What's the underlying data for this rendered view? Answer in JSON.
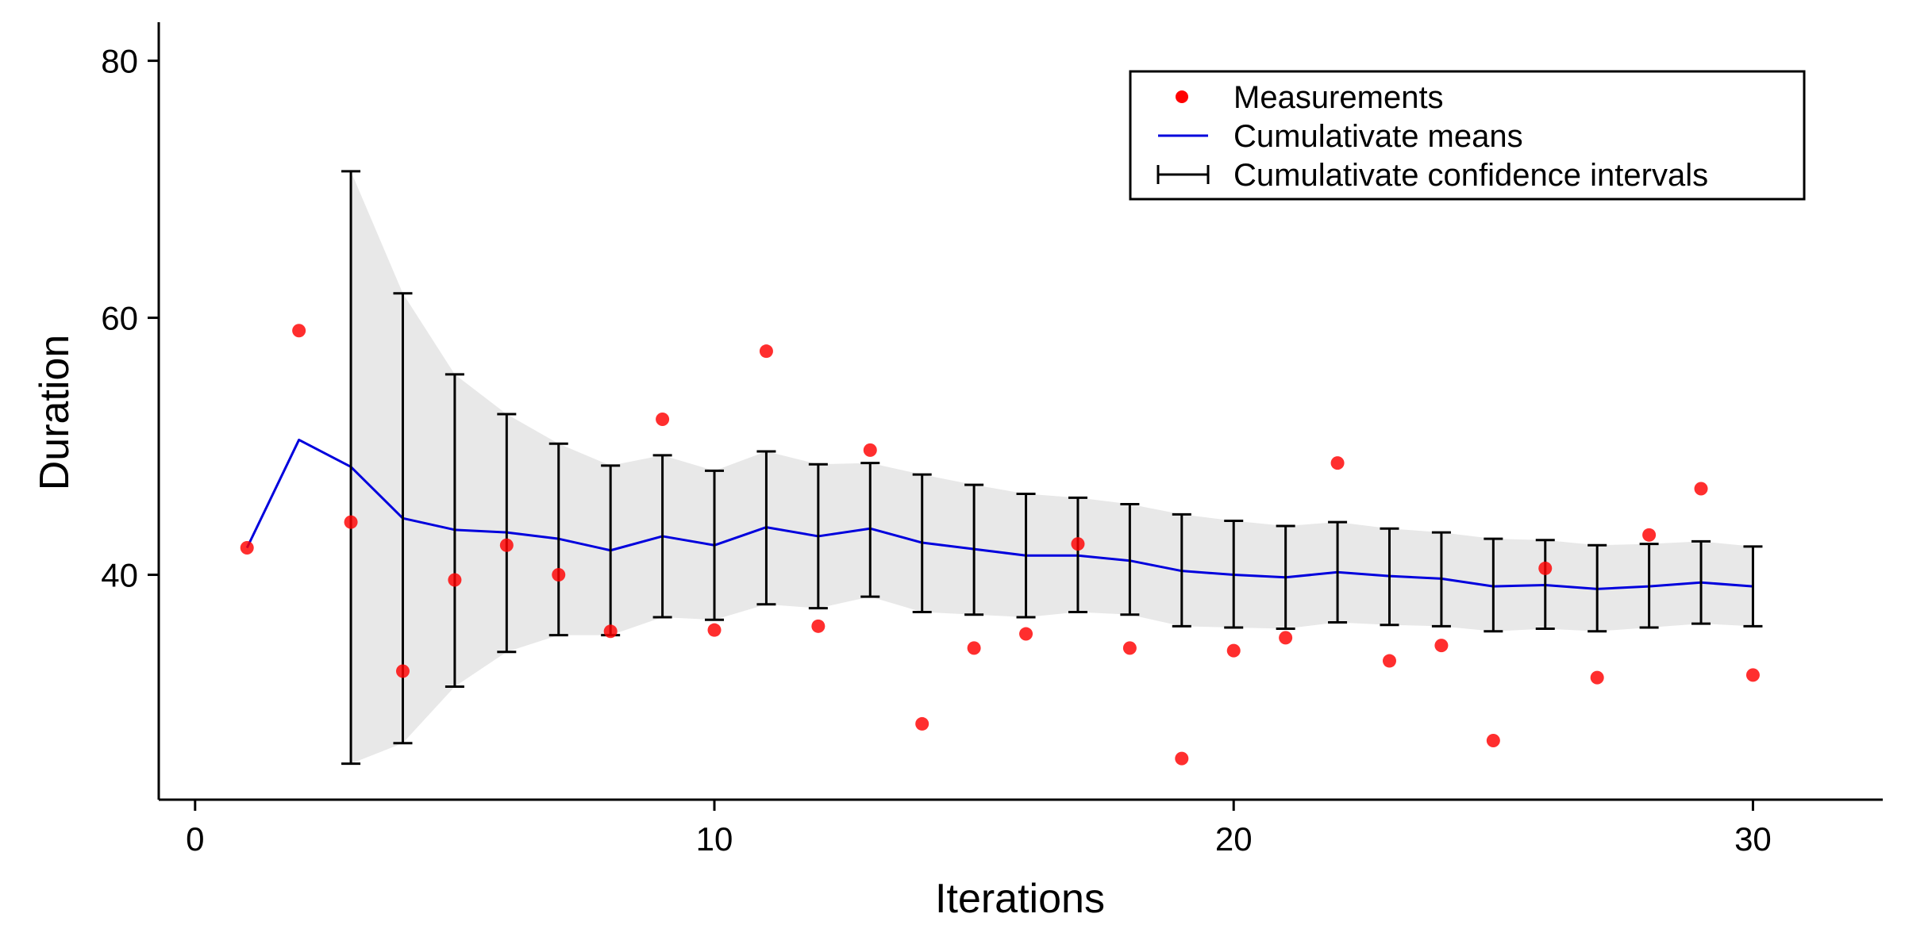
{
  "chart_data": {
    "type": "scatter",
    "title": "",
    "xlabel": "Iterations",
    "ylabel": "Duration",
    "xlim": [
      -0.7,
      32.5
    ],
    "ylim": [
      22.5,
      83
    ],
    "x_ticks": [
      0,
      10,
      20,
      30
    ],
    "y_ticks": [
      40,
      60,
      80
    ],
    "grid": false,
    "legend_position": "top-right",
    "colors": {
      "measurements": "#ff0000",
      "cumulative_mean": "#0000dd",
      "confidence_interval": "#000000",
      "ci_band": "#e8e8e8"
    },
    "legend": [
      {
        "label": "Measurements",
        "kind": "point"
      },
      {
        "label": "Cumulativate means",
        "kind": "line"
      },
      {
        "label": "Cumulativate confidence intervals",
        "kind": "errorbar"
      }
    ],
    "measurements": {
      "x": [
        1,
        2,
        3,
        4,
        5,
        6,
        7,
        8,
        9,
        10,
        11,
        12,
        13,
        14,
        15,
        16,
        17,
        18,
        19,
        20,
        21,
        22,
        23,
        24,
        25,
        26,
        27,
        28,
        29,
        30
      ],
      "y": [
        42.1,
        59.0,
        44.1,
        32.5,
        39.6,
        42.3,
        40.0,
        35.6,
        52.1,
        35.7,
        57.4,
        36.0,
        49.7,
        28.4,
        34.3,
        35.4,
        42.4,
        34.3,
        25.7,
        34.1,
        35.1,
        48.7,
        33.3,
        34.5,
        27.1,
        40.5,
        32.0,
        43.1,
        46.7,
        32.2
      ]
    },
    "cumulative_means": {
      "x": [
        1,
        2,
        3,
        4,
        5,
        6,
        7,
        8,
        9,
        10,
        11,
        12,
        13,
        14,
        15,
        16,
        17,
        18,
        19,
        20,
        21,
        22,
        23,
        24,
        25,
        26,
        27,
        28,
        29,
        30
      ],
      "y": [
        42.1,
        50.5,
        48.4,
        44.4,
        43.5,
        43.3,
        42.8,
        41.9,
        43.0,
        42.3,
        43.7,
        43.0,
        43.6,
        42.5,
        42.0,
        41.5,
        41.5,
        41.1,
        40.3,
        40.0,
        39.8,
        40.2,
        39.9,
        39.7,
        39.1,
        39.2,
        38.9,
        39.1,
        39.4,
        39.1
      ]
    },
    "confidence_intervals": {
      "x": [
        3,
        4,
        5,
        6,
        7,
        8,
        9,
        10,
        11,
        12,
        13,
        14,
        15,
        16,
        17,
        18,
        19,
        20,
        21,
        22,
        23,
        24,
        25,
        26,
        27,
        28,
        29,
        30
      ],
      "lower": [
        25.3,
        26.9,
        31.3,
        34.0,
        35.3,
        35.3,
        36.7,
        36.5,
        37.7,
        37.4,
        38.3,
        37.1,
        36.9,
        36.7,
        37.1,
        36.9,
        36.0,
        35.9,
        35.8,
        36.3,
        36.1,
        36.0,
        35.6,
        35.8,
        35.6,
        35.9,
        36.2,
        36.0
      ],
      "upper": [
        71.4,
        61.9,
        55.6,
        52.5,
        50.2,
        48.5,
        49.3,
        48.1,
        49.6,
        48.6,
        48.7,
        47.8,
        47.0,
        46.3,
        46.0,
        45.5,
        44.7,
        44.2,
        43.8,
        44.1,
        43.6,
        43.3,
        42.8,
        42.7,
        42.3,
        42.4,
        42.6,
        42.2
      ]
    }
  }
}
